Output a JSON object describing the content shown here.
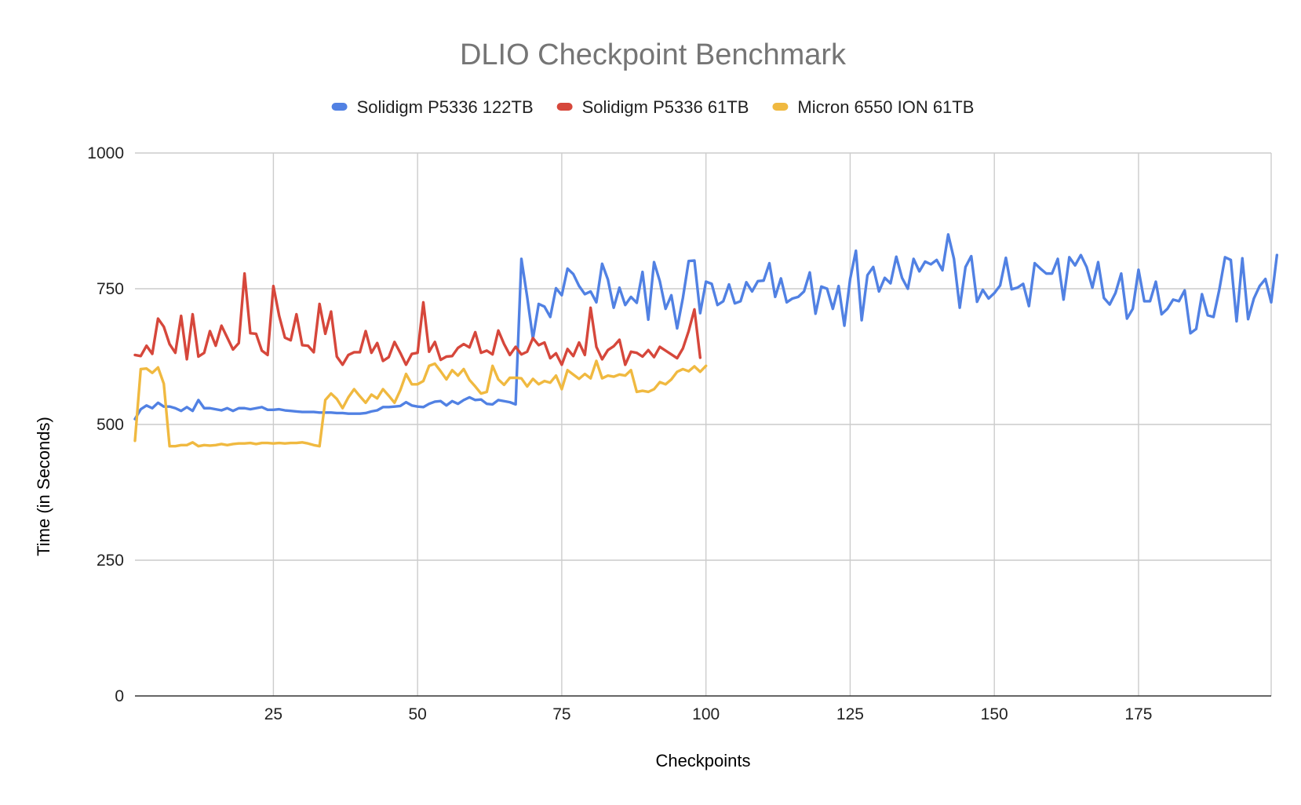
{
  "chart_data": {
    "type": "line",
    "title": "DLIO Checkpoint Benchmark",
    "xlabel": "Checkpoints",
    "ylabel": "Time (in Seconds)",
    "xlim": [
      1,
      198
    ],
    "ylim": [
      0,
      1000
    ],
    "xticks": [
      25,
      50,
      75,
      100,
      125,
      150,
      175
    ],
    "yticks": [
      0,
      250,
      500,
      750,
      1000
    ],
    "grid": true,
    "legend_position": "top",
    "series": [
      {
        "name": "Solidigm P5336 122TB",
        "color": "#5181e3",
        "x_start": 1,
        "values": [
          510,
          528,
          535,
          530,
          540,
          533,
          533,
          530,
          525,
          532,
          525,
          545,
          530,
          530,
          528,
          526,
          530,
          525,
          530,
          530,
          528,
          530,
          532,
          527,
          527,
          528,
          526,
          525,
          524,
          523,
          523,
          523,
          522,
          522,
          522,
          521,
          521,
          520,
          520,
          520,
          521,
          524,
          526,
          532,
          532,
          533,
          534,
          541,
          535,
          533,
          532,
          538,
          542,
          543,
          535,
          543,
          538,
          545,
          550,
          545,
          546,
          538,
          537,
          545,
          543,
          541,
          537,
          805,
          735,
          658,
          722,
          717,
          698,
          751,
          738,
          787,
          777,
          755,
          740,
          745,
          725,
          796,
          767,
          715,
          752,
          720,
          735,
          724,
          781,
          693,
          799,
          764,
          713,
          738,
          677,
          733,
          801,
          802,
          705,
          763,
          759,
          720,
          727,
          758,
          723,
          727,
          762,
          745,
          764,
          765,
          797,
          735,
          769,
          725,
          732,
          735,
          745,
          780,
          704,
          754,
          750,
          713,
          755,
          682,
          768,
          820,
          692,
          775,
          790,
          745,
          770,
          760,
          809,
          770,
          750,
          805,
          782,
          800,
          795,
          803,
          784,
          850,
          805,
          715,
          790,
          810,
          726,
          748,
          732,
          742,
          756,
          807,
          749,
          752,
          759,
          718,
          797,
          787,
          778,
          778,
          805,
          730,
          808,
          793,
          812,
          790,
          752,
          799,
          733,
          721,
          742,
          778,
          695,
          713,
          785,
          727,
          727,
          763,
          703,
          713,
          730,
          727,
          747,
          668,
          676,
          740,
          701,
          698,
          748,
          808,
          803,
          690,
          806,
          694,
          732,
          755,
          768,
          725,
          812
        ]
      },
      {
        "name": "Solidigm P5336 61TB",
        "color": "#d6473b",
        "x_start": 1,
        "values": [
          628,
          626,
          645,
          630,
          695,
          680,
          648,
          632,
          700,
          620,
          703,
          625,
          632,
          672,
          645,
          682,
          660,
          638,
          650,
          778,
          668,
          667,
          636,
          628,
          755,
          700,
          660,
          655,
          703,
          646,
          645,
          633,
          722,
          667,
          708,
          625,
          610,
          628,
          633,
          633,
          672,
          632,
          650,
          617,
          624,
          652,
          632,
          610,
          630,
          632,
          725,
          634,
          652,
          619,
          625,
          626,
          641,
          648,
          642,
          670,
          632,
          636,
          629,
          673,
          648,
          628,
          643,
          629,
          634,
          659,
          646,
          651,
          622,
          631,
          610,
          639,
          626,
          651,
          628,
          715,
          643,
          620,
          637,
          644,
          656,
          610,
          634,
          632,
          625,
          637,
          624,
          643,
          636,
          629,
          622,
          640,
          672,
          712,
          623
        ]
      },
      {
        "name": "Micron 6550 ION 61TB",
        "color": "#f0b940",
        "x_start": 1,
        "values": [
          470,
          602,
          603,
          595,
          605,
          575,
          460,
          460,
          462,
          462,
          467,
          460,
          462,
          461,
          462,
          464,
          462,
          464,
          465,
          465,
          466,
          464,
          466,
          466,
          465,
          466,
          465,
          466,
          466,
          467,
          465,
          462,
          460,
          545,
          557,
          547,
          530,
          550,
          565,
          552,
          540,
          555,
          548,
          565,
          553,
          540,
          563,
          593,
          574,
          574,
          580,
          608,
          612,
          598,
          583,
          600,
          590,
          602,
          582,
          570,
          557,
          560,
          608,
          583,
          573,
          586,
          586,
          585,
          570,
          584,
          574,
          580,
          577,
          590,
          565,
          600,
          592,
          584,
          593,
          585,
          617,
          585,
          590,
          588,
          592,
          590,
          600,
          560,
          562,
          560,
          565,
          578,
          574,
          583,
          597,
          602,
          598,
          607,
          597,
          608
        ]
      }
    ]
  }
}
